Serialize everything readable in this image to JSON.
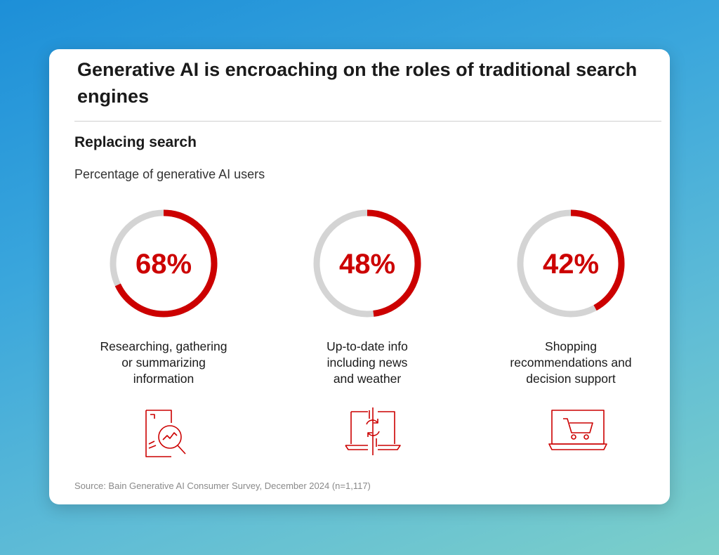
{
  "card": {
    "title": "Generative AI is encroaching on the roles of traditional search engines",
    "subtitle": "Replacing search",
    "caption": "Percentage of generative AI users",
    "source": "Source: Bain Generative AI Consumer Survey, December 2024 (n=1,117)"
  },
  "colors": {
    "accent": "#cc0000",
    "track": "#d4d4d4",
    "text": "#1a1a1a"
  },
  "chart_data": {
    "type": "pie",
    "title": "Replacing search",
    "subtitle": "Percentage of generative AI users",
    "unit": "%",
    "items": [
      {
        "label": "Researching, gathering or summarizing information",
        "label_lines": [
          "Researching, gathering",
          "or summarizing",
          "information"
        ],
        "value": 68,
        "value_label": "68%",
        "icon": "document-search-chart-icon"
      },
      {
        "label": "Up-to-date info including news and weather",
        "label_lines": [
          "Up-to-date info",
          "including news",
          "and weather"
        ],
        "value": 48,
        "value_label": "48%",
        "icon": "laptop-refresh-icon"
      },
      {
        "label": "Shopping recommendations and decision support",
        "label_lines": [
          "Shopping",
          "recommendations and",
          "decision support"
        ],
        "value": 42,
        "value_label": "42%",
        "icon": "laptop-cart-icon"
      }
    ]
  }
}
